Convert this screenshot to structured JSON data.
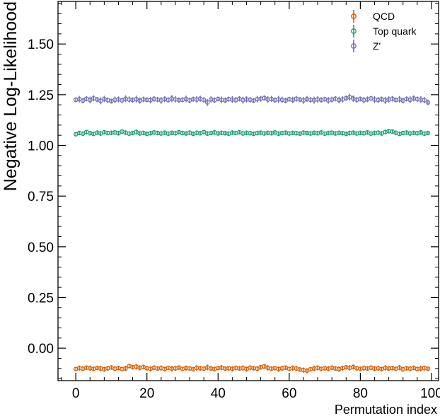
{
  "chart_data": {
    "type": "scatter",
    "xlabel": "Permutation index",
    "ylabel": "Negative Log-Likelihood",
    "xlim": [
      -5,
      102
    ],
    "ylim": [
      -0.16,
      1.71
    ],
    "x_ticks": [
      0,
      20,
      40,
      60,
      80,
      100
    ],
    "x_tick_labels": [
      "0",
      "20",
      "40",
      "60",
      "80",
      "100"
    ],
    "y_ticks": [
      0.0,
      0.25,
      0.5,
      0.75,
      1.0,
      1.25,
      1.5
    ],
    "y_tick_labels": [
      "0.00",
      "0.25",
      "0.50",
      "0.75",
      "1.00",
      "1.25",
      "1.50"
    ],
    "grid": false,
    "legend_position": "top-right",
    "x": [
      0,
      1,
      2,
      3,
      4,
      5,
      6,
      7,
      8,
      9,
      10,
      11,
      12,
      13,
      14,
      15,
      16,
      17,
      18,
      19,
      20,
      21,
      22,
      23,
      24,
      25,
      26,
      27,
      28,
      29,
      30,
      31,
      32,
      33,
      34,
      35,
      36,
      37,
      38,
      39,
      40,
      41,
      42,
      43,
      44,
      45,
      46,
      47,
      48,
      49,
      50,
      51,
      52,
      53,
      54,
      55,
      56,
      57,
      58,
      59,
      60,
      61,
      62,
      63,
      64,
      65,
      66,
      67,
      68,
      69,
      70,
      71,
      72,
      73,
      74,
      75,
      76,
      77,
      78,
      79,
      80,
      81,
      82,
      83,
      84,
      85,
      86,
      87,
      88,
      89,
      90,
      91,
      92,
      93,
      94,
      95,
      96,
      97,
      98,
      99
    ],
    "series": [
      {
        "name": "QCD",
        "color": "#d95f02",
        "error": 0.012,
        "values": [
          -0.103,
          -0.098,
          -0.101,
          -0.096,
          -0.099,
          -0.102,
          -0.097,
          -0.1,
          -0.104,
          -0.099,
          -0.095,
          -0.101,
          -0.098,
          -0.103,
          -0.1,
          -0.088,
          -0.094,
          -0.091,
          -0.097,
          -0.093,
          -0.099,
          -0.102,
          -0.096,
          -0.1,
          -0.098,
          -0.103,
          -0.097,
          -0.101,
          -0.099,
          -0.096,
          -0.102,
          -0.098,
          -0.1,
          -0.104,
          -0.097,
          -0.099,
          -0.101,
          -0.095,
          -0.1,
          -0.103,
          -0.098,
          -0.096,
          -0.101,
          -0.099,
          -0.102,
          -0.097,
          -0.1,
          -0.098,
          -0.103,
          -0.096,
          -0.099,
          -0.101,
          -0.094,
          -0.09,
          -0.097,
          -0.101,
          -0.098,
          -0.103,
          -0.099,
          -0.096,
          -0.102,
          -0.098,
          -0.1,
          -0.105,
          -0.108,
          -0.111,
          -0.104,
          -0.1,
          -0.097,
          -0.102,
          -0.099,
          -0.101,
          -0.096,
          -0.1,
          -0.103,
          -0.098,
          -0.094,
          -0.097,
          -0.093,
          -0.099,
          -0.102,
          -0.098,
          -0.1,
          -0.096,
          -0.101,
          -0.099,
          -0.103,
          -0.097,
          -0.1,
          -0.098,
          -0.102,
          -0.096,
          -0.104,
          -0.099,
          -0.101,
          -0.097,
          -0.103,
          -0.1,
          -0.098,
          -0.101
        ]
      },
      {
        "name": "Top quark",
        "color": "#1b9e77",
        "error": 0.01,
        "values": [
          1.055,
          1.061,
          1.058,
          1.066,
          1.06,
          1.057,
          1.063,
          1.059,
          1.065,
          1.061,
          1.062,
          1.064,
          1.06,
          1.068,
          1.063,
          1.058,
          1.061,
          1.066,
          1.059,
          1.062,
          1.057,
          1.06,
          1.064,
          1.061,
          1.059,
          1.063,
          1.058,
          1.062,
          1.06,
          1.065,
          1.061,
          1.059,
          1.063,
          1.057,
          1.062,
          1.06,
          1.066,
          1.058,
          1.061,
          1.064,
          1.059,
          1.062,
          1.06,
          1.058,
          1.063,
          1.061,
          1.065,
          1.059,
          1.062,
          1.06,
          1.057,
          1.061,
          1.063,
          1.059,
          1.062,
          1.06,
          1.064,
          1.058,
          1.061,
          1.063,
          1.059,
          1.062,
          1.06,
          1.058,
          1.063,
          1.061,
          1.059,
          1.062,
          1.06,
          1.064,
          1.058,
          1.061,
          1.063,
          1.059,
          1.062,
          1.06,
          1.057,
          1.061,
          1.063,
          1.059,
          1.062,
          1.06,
          1.064,
          1.058,
          1.061,
          1.063,
          1.059,
          1.066,
          1.07,
          1.068,
          1.062,
          1.057,
          1.061,
          1.063,
          1.059,
          1.062,
          1.06,
          1.064,
          1.058,
          1.061
        ]
      },
      {
        "name": "Z'",
        "color": "#7570b3",
        "error": 0.015,
        "values": [
          1.225,
          1.228,
          1.221,
          1.23,
          1.224,
          1.232,
          1.226,
          1.22,
          1.229,
          1.223,
          1.218,
          1.225,
          1.227,
          1.222,
          1.23,
          1.226,
          1.224,
          1.228,
          1.221,
          1.227,
          1.225,
          1.223,
          1.229,
          1.226,
          1.222,
          1.228,
          1.224,
          1.231,
          1.227,
          1.223,
          1.225,
          1.229,
          1.222,
          1.228,
          1.226,
          1.23,
          1.224,
          1.212,
          1.227,
          1.223,
          1.229,
          1.225,
          1.222,
          1.228,
          1.226,
          1.224,
          1.23,
          1.223,
          1.227,
          1.225,
          1.221,
          1.228,
          1.23,
          1.234,
          1.226,
          1.229,
          1.223,
          1.227,
          1.225,
          1.221,
          1.228,
          1.224,
          1.23,
          1.226,
          1.222,
          1.229,
          1.225,
          1.223,
          1.227,
          1.224,
          1.228,
          1.222,
          1.226,
          1.23,
          1.224,
          1.227,
          1.233,
          1.238,
          1.231,
          1.225,
          1.229,
          1.223,
          1.227,
          1.232,
          1.226,
          1.224,
          1.228,
          1.222,
          1.226,
          1.23,
          1.224,
          1.227,
          1.221,
          1.229,
          1.225,
          1.232,
          1.228,
          1.226,
          1.223,
          1.212
        ]
      }
    ]
  }
}
